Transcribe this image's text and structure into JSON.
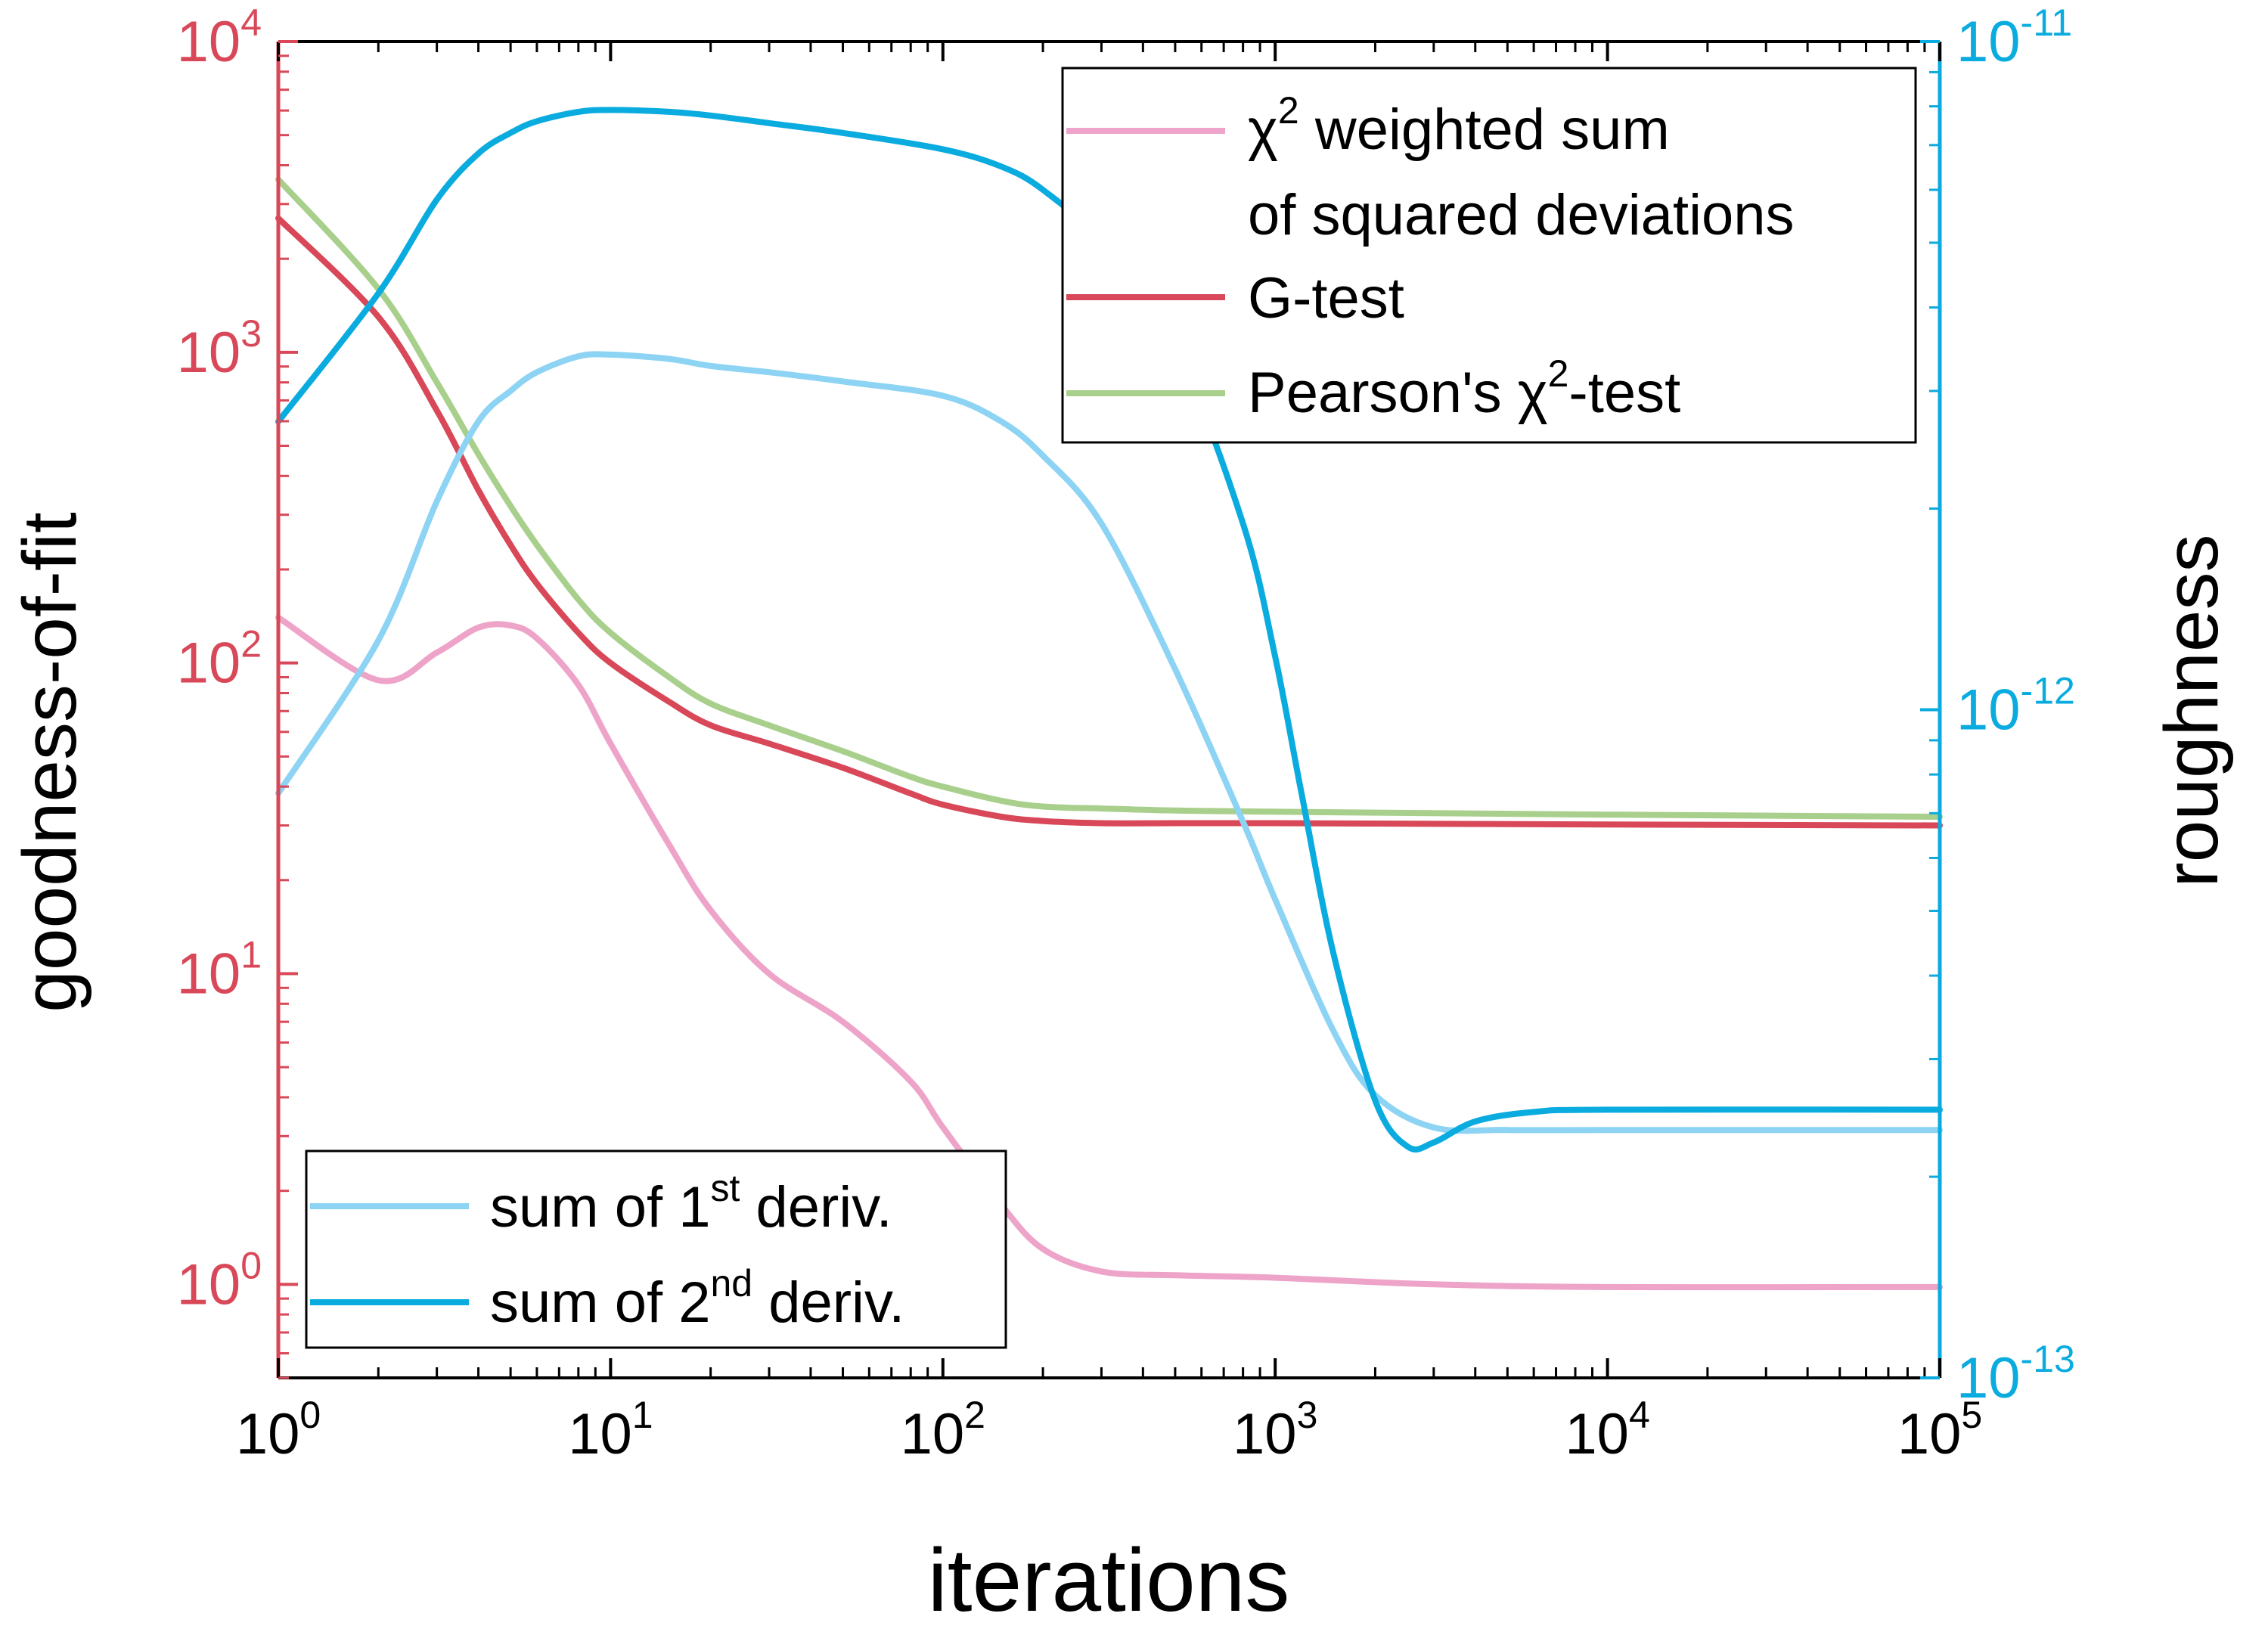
{
  "chart_data": {
    "type": "line",
    "x_axis": {
      "label": "iterations",
      "scale": "log",
      "range": [
        1,
        100000
      ],
      "ticks": [
        1,
        10,
        100,
        1000,
        10000,
        100000
      ],
      "tick_labels": [
        {
          "base": "10",
          "exp": "0"
        },
        {
          "base": "10",
          "exp": "1"
        },
        {
          "base": "10",
          "exp": "2"
        },
        {
          "base": "10",
          "exp": "3"
        },
        {
          "base": "10",
          "exp": "4"
        },
        {
          "base": "10",
          "exp": "5"
        }
      ]
    },
    "y_left": {
      "label": "goodness-of-fit",
      "scale": "log",
      "range": [
        0.5,
        10000
      ],
      "color": "#d84858",
      "ticks": [
        1,
        10,
        100,
        1000,
        10000
      ],
      "tick_labels": [
        {
          "base": "10",
          "exp": "0"
        },
        {
          "base": "10",
          "exp": "1"
        },
        {
          "base": "10",
          "exp": "2"
        },
        {
          "base": "10",
          "exp": "3"
        },
        {
          "base": "10",
          "exp": "4"
        }
      ]
    },
    "y_right": {
      "label": "roughness",
      "scale": "log",
      "range": [
        1e-13,
        1e-11
      ],
      "color": "#0aabdf",
      "ticks": [
        1e-13,
        1e-12,
        1e-11
      ],
      "tick_labels": [
        {
          "base": "10",
          "exp": "-13"
        },
        {
          "base": "10",
          "exp": "-12"
        },
        {
          "base": "10",
          "exp": "-11"
        }
      ]
    },
    "series": [
      {
        "name": "χ² weighted sum of squared deviations",
        "legend_lines": [
          "χ",
          "2",
          " weighted sum",
          "of squared deviations"
        ],
        "axis": "left",
        "color": "#eea3c8",
        "x": [
          1,
          2,
          3,
          4,
          5,
          6,
          8,
          10,
          15,
          20,
          30,
          50,
          80,
          100,
          150,
          200,
          300,
          500,
          1000,
          3000,
          10000,
          100000
        ],
        "y": [
          140,
          88,
          108,
          130,
          132,
          120,
          85,
          55,
          26,
          16,
          10,
          7,
          4.5,
          3.2,
          1.8,
          1.3,
          1.1,
          1.07,
          1.05,
          1.0,
          0.98,
          0.98
        ]
      },
      {
        "name": "G-test",
        "axis": "left",
        "color": "#d84858",
        "x": [
          1,
          2,
          3,
          4,
          5,
          6,
          8,
          10,
          15,
          20,
          30,
          50,
          80,
          100,
          150,
          200,
          300,
          500,
          1000,
          10000,
          100000
        ],
        "y": [
          2700,
          1300,
          650,
          360,
          240,
          180,
          125,
          100,
          75,
          63,
          55,
          46,
          38,
          35,
          32,
          31,
          30.5,
          30.5,
          30.5,
          30.2,
          30
        ]
      },
      {
        "name": "Pearson's χ²-test",
        "legend_parts": [
          "Pearson's χ",
          "2",
          "-test"
        ],
        "axis": "left",
        "color": "#a8cf8b",
        "x": [
          1,
          2,
          3,
          4,
          5,
          6,
          8,
          10,
          15,
          20,
          30,
          50,
          80,
          100,
          150,
          200,
          300,
          500,
          1000,
          10000,
          100000
        ],
        "y": [
          3600,
          1600,
          800,
          470,
          320,
          240,
          160,
          125,
          90,
          74,
          63,
          52,
          43,
          40,
          36,
          34.5,
          34,
          33.5,
          33.2,
          32.5,
          32
        ]
      },
      {
        "name": "sum of 1st deriv.",
        "legend_parts": [
          "sum of 1",
          "st",
          " deriv."
        ],
        "axis": "right",
        "color": "#8dd3f3",
        "x": [
          1,
          2,
          3,
          4,
          5,
          6,
          8,
          10,
          15,
          20,
          30,
          50,
          100,
          150,
          200,
          300,
          500,
          800,
          1000,
          1500,
          2000,
          3000,
          5000,
          10000,
          100000
        ],
        "y": [
          7.5e-13,
          1.27e-12,
          2.05e-12,
          2.7e-12,
          3e-12,
          3.2e-12,
          3.38e-12,
          3.4e-12,
          3.35e-12,
          3.27e-12,
          3.2e-12,
          3.1e-12,
          2.95e-12,
          2.7e-12,
          2.4e-12,
          1.9e-12,
          1.15e-12,
          6.8e-13,
          5.2e-13,
          3.3e-13,
          2.65e-13,
          2.37e-13,
          2.35e-13,
          2.35e-13,
          2.35e-13
        ]
      },
      {
        "name": "sum of 2nd deriv.",
        "legend_parts": [
          "sum of 2",
          "nd",
          " deriv."
        ],
        "axis": "right",
        "color": "#0aabdf",
        "x": [
          1,
          2,
          3,
          4,
          5,
          6,
          8,
          10,
          15,
          20,
          30,
          50,
          100,
          150,
          200,
          300,
          500,
          800,
          1000,
          1200,
          1500,
          2000,
          2500,
          3000,
          4000,
          6000,
          10000,
          100000
        ],
        "y": [
          2.7e-12,
          4.2e-12,
          5.8e-12,
          6.8e-12,
          7.3e-12,
          7.6e-12,
          7.85e-12,
          7.9e-12,
          7.85e-12,
          7.75e-12,
          7.55e-12,
          7.3e-12,
          6.9e-12,
          6.5e-12,
          6e-12,
          5e-12,
          3.5e-12,
          1.9e-12,
          1.2e-12,
          7.5e-13,
          4.3e-13,
          2.6e-13,
          2.22e-13,
          2.25e-13,
          2.42e-13,
          2.5e-13,
          2.52e-13,
          2.52e-13
        ]
      }
    ],
    "legends": [
      {
        "placement": "top-right",
        "series": [
          0,
          1,
          2
        ]
      },
      {
        "placement": "bottom-left",
        "series": [
          3,
          4
        ]
      }
    ],
    "grid": false
  }
}
